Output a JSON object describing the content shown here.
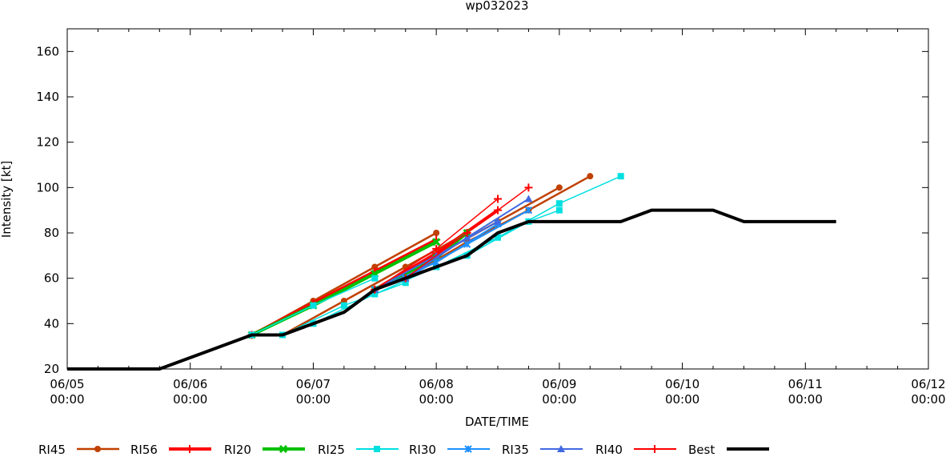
{
  "chart_data": {
    "type": "line",
    "title": "wp032023",
    "xlabel": "DATE/TIME",
    "ylabel": "Intensity [kt]",
    "x_units": "hours since 06/05 00:00",
    "xlim": [
      0,
      168
    ],
    "ylim": [
      20,
      170
    ],
    "yticks": [
      20,
      40,
      60,
      80,
      100,
      120,
      140,
      160
    ],
    "xticks": [
      {
        "x": 0,
        "date": "06/05",
        "time": "00:00"
      },
      {
        "x": 24,
        "date": "06/06",
        "time": "00:00"
      },
      {
        "x": 48,
        "date": "06/07",
        "time": "00:00"
      },
      {
        "x": 72,
        "date": "06/08",
        "time": "00:00"
      },
      {
        "x": 96,
        "date": "06/09",
        "time": "00:00"
      },
      {
        "x": 120,
        "date": "06/10",
        "time": "00:00"
      },
      {
        "x": 144,
        "date": "06/11",
        "time": "00:00"
      },
      {
        "x": 168,
        "date": "06/12",
        "time": "00:00"
      }
    ],
    "legend_position": "bottom",
    "series": [
      {
        "name": "RI45",
        "color": "#c04000",
        "width": 2.5,
        "marker": "circle",
        "tracks": [
          [
            [
              36,
              35
            ],
            [
              48,
              50
            ],
            [
              60,
              65
            ],
            [
              72,
              80
            ]
          ],
          [
            [
              42,
              35
            ],
            [
              54,
              50
            ],
            [
              66,
              65
            ],
            [
              78,
              80
            ]
          ],
          [
            [
              60,
              55
            ],
            [
              72,
              70
            ],
            [
              84,
              85
            ],
            [
              96,
              100
            ]
          ],
          [
            [
              66,
              60
            ],
            [
              78,
              76
            ],
            [
              90,
              90
            ],
            [
              102,
              105
            ]
          ]
        ]
      },
      {
        "name": "RI56",
        "color": "#ff0000",
        "width": 4,
        "marker": "plus",
        "tracks": [
          [
            [
              36,
              35
            ],
            [
              48,
              49
            ],
            [
              60,
              63
            ],
            [
              72,
              77
            ]
          ],
          [
            [
              60,
              55
            ],
            [
              72,
              71
            ],
            [
              84,
              90
            ]
          ]
        ]
      },
      {
        "name": "RI20",
        "color": "#00c000",
        "width": 4,
        "marker": "x",
        "tracks": [
          [
            [
              36,
              35
            ],
            [
              48,
              48
            ],
            [
              60,
              62
            ],
            [
              72,
              76
            ]
          ],
          [
            [
              60,
              55
            ],
            [
              72,
              69
            ],
            [
              78,
              80
            ]
          ]
        ]
      },
      {
        "name": "RI25",
        "color": "#00e0e0",
        "width": 1.5,
        "marker": "square",
        "tracks": [
          [
            [
              36,
              35
            ],
            [
              48,
              48
            ],
            [
              60,
              60
            ]
          ],
          [
            [
              42,
              35
            ],
            [
              54,
              48
            ],
            [
              66,
              58
            ]
          ],
          [
            [
              48,
              40
            ],
            [
              60,
              53
            ],
            [
              72,
              65
            ],
            [
              84,
              78
            ]
          ],
          [
            [
              72,
              65
            ],
            [
              84,
              78
            ],
            [
              96,
              93
            ],
            [
              108,
              105
            ]
          ],
          [
            [
              78,
              70
            ],
            [
              90,
              85
            ],
            [
              96,
              90
            ]
          ]
        ]
      },
      {
        "name": "RI30",
        "color": "#1e90ff",
        "width": 2,
        "marker": "asterisk",
        "tracks": [
          [
            [
              60,
              55
            ],
            [
              72,
              67
            ],
            [
              84,
              84
            ]
          ],
          [
            [
              66,
              60
            ],
            [
              78,
              75
            ],
            [
              90,
              90
            ]
          ]
        ]
      },
      {
        "name": "RI35",
        "color": "#4169e1",
        "width": 2,
        "marker": "triangle",
        "tracks": [
          [
            [
              60,
              55
            ],
            [
              72,
              70
            ],
            [
              84,
              85
            ]
          ],
          [
            [
              66,
              60
            ],
            [
              78,
              78
            ],
            [
              90,
              95
            ]
          ]
        ]
      },
      {
        "name": "RI40",
        "color": "#ff0000",
        "width": 1.5,
        "marker": "plus",
        "tracks": [
          [
            [
              60,
              55
            ],
            [
              72,
              73
            ],
            [
              84,
              95
            ]
          ],
          [
            [
              66,
              60
            ],
            [
              78,
              80
            ],
            [
              90,
              100
            ]
          ]
        ]
      },
      {
        "name": "Best",
        "color": "#000000",
        "width": 4,
        "marker": "none",
        "tracks": [
          [
            [
              0,
              20
            ],
            [
              18,
              20
            ],
            [
              36,
              35
            ],
            [
              42,
              35
            ],
            [
              48,
              40
            ],
            [
              54,
              45
            ],
            [
              60,
              55
            ],
            [
              66,
              60
            ],
            [
              72,
              65
            ],
            [
              78,
              70
            ],
            [
              84,
              80
            ],
            [
              90,
              85
            ],
            [
              96,
              85
            ],
            [
              102,
              85
            ],
            [
              108,
              85
            ],
            [
              114,
              90
            ],
            [
              120,
              90
            ],
            [
              126,
              90
            ],
            [
              132,
              85
            ],
            [
              138,
              85
            ],
            [
              144,
              85
            ],
            [
              150,
              85
            ]
          ]
        ]
      }
    ]
  }
}
